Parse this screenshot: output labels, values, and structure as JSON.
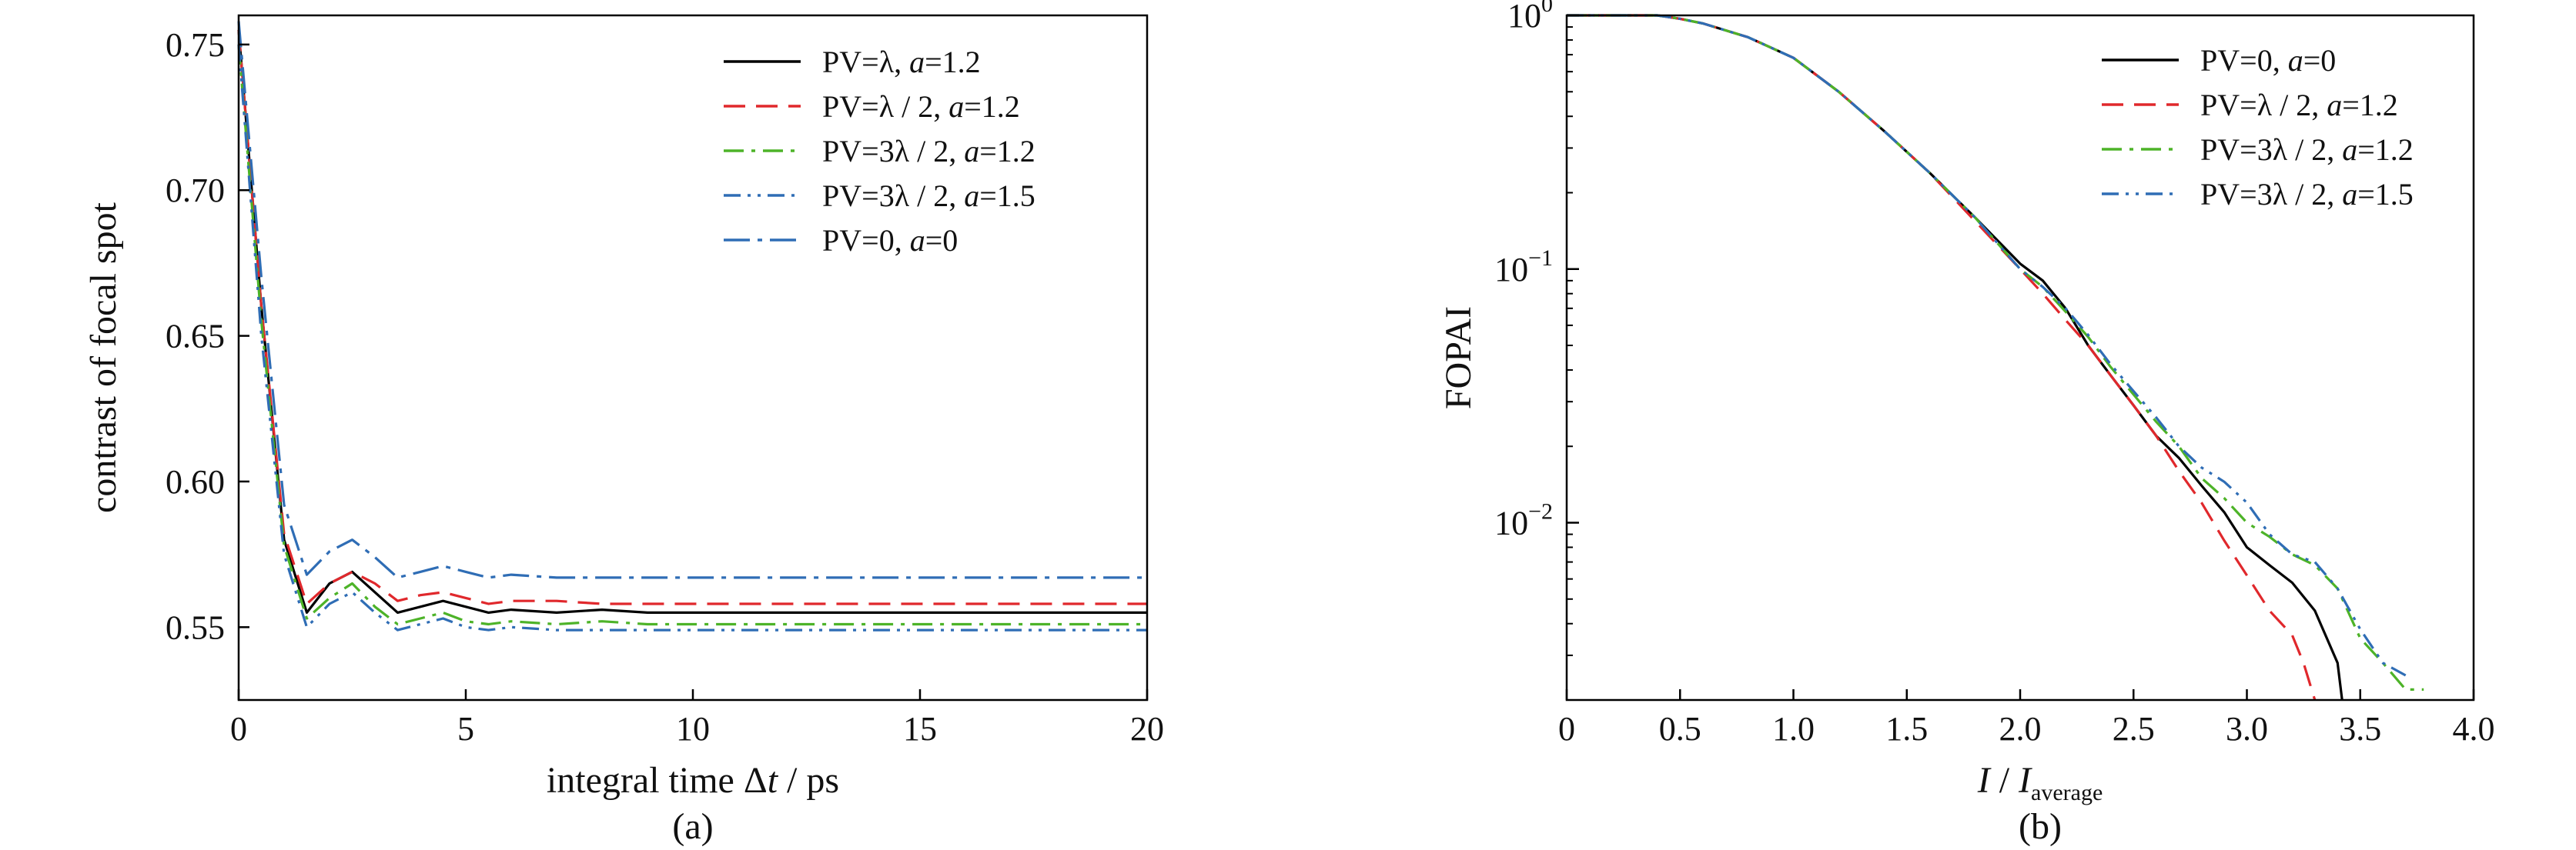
{
  "chart_data": [
    {
      "id": "a",
      "type": "line",
      "caption": "(a)",
      "xlabel_parts": [
        "integral time Δ",
        "t",
        " / ps"
      ],
      "ylabel": "contrast of focal spot",
      "xlim": [
        0,
        20
      ],
      "ylim": [
        0.525,
        0.76
      ],
      "xticks": [
        "0",
        "5",
        "10",
        "15",
        "20"
      ],
      "yticks": [
        "0.55",
        "0.60",
        "0.65",
        "0.70",
        "0.75"
      ],
      "grid": false,
      "legend_position": "top-right",
      "series": [
        {
          "name": "PV=λ, a=1.2",
          "label_parts": [
            "PV=λ, ",
            "a",
            "=1.2"
          ],
          "color": "#000000",
          "dash": "solid",
          "x": [
            0,
            0.5,
            1.0,
            1.5,
            2.0,
            2.5,
            3.0,
            3.5,
            4.0,
            4.5,
            5.0,
            5.5,
            6.0,
            7.0,
            8.0,
            9.0,
            10.0,
            12.0,
            14.0,
            16.0,
            18.0,
            20.0
          ],
          "y": [
            0.755,
            0.66,
            0.58,
            0.555,
            0.565,
            0.569,
            0.562,
            0.555,
            0.557,
            0.559,
            0.557,
            0.555,
            0.556,
            0.555,
            0.556,
            0.555,
            0.555,
            0.555,
            0.555,
            0.555,
            0.555,
            0.555
          ]
        },
        {
          "name": "PV=λ / 2, a=1.2",
          "label_parts": [
            "PV=λ / 2, ",
            "a",
            "=1.2"
          ],
          "color": "#e0282c",
          "dash": "dashed",
          "x": [
            0,
            0.5,
            1.0,
            1.5,
            2.0,
            2.5,
            3.0,
            3.5,
            4.0,
            4.5,
            5.0,
            5.5,
            6.0,
            7.0,
            8.0,
            9.0,
            10.0,
            12.0,
            14.0,
            16.0,
            18.0,
            20.0
          ],
          "y": [
            0.755,
            0.66,
            0.582,
            0.558,
            0.565,
            0.569,
            0.565,
            0.559,
            0.561,
            0.562,
            0.56,
            0.558,
            0.559,
            0.559,
            0.558,
            0.558,
            0.558,
            0.558,
            0.558,
            0.558,
            0.558,
            0.558
          ]
        },
        {
          "name": "PV=3λ / 2, a=1.2",
          "label_parts": [
            "PV=3λ / 2, ",
            "a",
            "=1.2"
          ],
          "color": "#4db328",
          "dash": "dashdot",
          "x": [
            0,
            0.5,
            1.0,
            1.5,
            2.0,
            2.5,
            3.0,
            3.5,
            4.0,
            4.5,
            5.0,
            5.5,
            6.0,
            7.0,
            8.0,
            9.0,
            10.0,
            12.0,
            14.0,
            16.0,
            18.0,
            20.0
          ],
          "y": [
            0.75,
            0.655,
            0.578,
            0.553,
            0.56,
            0.565,
            0.557,
            0.551,
            0.553,
            0.555,
            0.552,
            0.551,
            0.552,
            0.551,
            0.552,
            0.551,
            0.551,
            0.551,
            0.551,
            0.551,
            0.551,
            0.551
          ]
        },
        {
          "name": "PV=3λ / 2, a=1.5",
          "label_parts": [
            "PV=3λ / 2, ",
            "a",
            "=1.5"
          ],
          "color": "#2f6db5",
          "dash": "dashdotdot",
          "x": [
            0,
            0.5,
            1.0,
            1.5,
            2.0,
            2.5,
            3.0,
            3.5,
            4.0,
            4.5,
            5.0,
            5.5,
            6.0,
            7.0,
            8.0,
            9.0,
            10.0,
            12.0,
            14.0,
            16.0,
            18.0,
            20.0
          ],
          "y": [
            0.75,
            0.65,
            0.575,
            0.55,
            0.558,
            0.562,
            0.555,
            0.549,
            0.551,
            0.553,
            0.55,
            0.549,
            0.55,
            0.549,
            0.549,
            0.549,
            0.549,
            0.549,
            0.549,
            0.549,
            0.549,
            0.549
          ]
        },
        {
          "name": "PV=0, a=0",
          "label_parts": [
            "PV=0, ",
            "a",
            "=0"
          ],
          "color": "#2f6db5",
          "dash": "longdashdot",
          "x": [
            0,
            0.5,
            1.0,
            1.5,
            2.0,
            2.5,
            3.0,
            3.5,
            4.0,
            4.5,
            5.0,
            5.5,
            6.0,
            7.0,
            8.0,
            9.0,
            10.0,
            12.0,
            14.0,
            16.0,
            18.0,
            20.0
          ],
          "y": [
            0.758,
            0.67,
            0.592,
            0.568,
            0.576,
            0.58,
            0.574,
            0.567,
            0.569,
            0.571,
            0.569,
            0.567,
            0.568,
            0.567,
            0.567,
            0.567,
            0.567,
            0.567,
            0.567,
            0.567,
            0.567,
            0.567
          ]
        }
      ]
    },
    {
      "id": "b",
      "type": "line",
      "caption": "(b)",
      "xlabel_parts": [
        "I",
        " / ",
        "I",
        "average"
      ],
      "ylabel": "FOPAI",
      "yscale": "log",
      "xlim": [
        0,
        4.0
      ],
      "ylim": [
        0.002,
        1.0
      ],
      "xticks": [
        "0",
        "0.5",
        "1.0",
        "1.5",
        "2.0",
        "2.5",
        "3.0",
        "3.5",
        "4.0"
      ],
      "yticks": [
        {
          "base": "10",
          "exp": "0"
        },
        {
          "base": "10",
          "exp": "−1"
        },
        {
          "base": "10",
          "exp": "−2"
        }
      ],
      "grid": false,
      "legend_position": "top-right",
      "series": [
        {
          "name": "PV=0, a=0",
          "label_parts": [
            "PV=0, ",
            "a",
            "=0"
          ],
          "color": "#000000",
          "dash": "solid",
          "x": [
            0,
            0.1,
            0.2,
            0.3,
            0.4,
            0.5,
            0.6,
            0.8,
            1.0,
            1.2,
            1.4,
            1.6,
            1.8,
            2.0,
            2.1,
            2.2,
            2.3,
            2.4,
            2.5,
            2.6,
            2.7,
            2.8,
            2.9,
            3.0,
            3.1,
            3.2,
            3.3,
            3.4,
            3.42
          ],
          "y": [
            1.0,
            1.0,
            1.0,
            1.0,
            1.0,
            0.97,
            0.93,
            0.82,
            0.68,
            0.5,
            0.35,
            0.24,
            0.16,
            0.105,
            0.09,
            0.07,
            0.05,
            0.038,
            0.029,
            0.022,
            0.018,
            0.014,
            0.011,
            0.008,
            0.0068,
            0.0058,
            0.0045,
            0.0028,
            0.002
          ]
        },
        {
          "name": "PV=λ / 2, a=1.2",
          "label_parts": [
            "PV=λ / 2, ",
            "a",
            "=1.2"
          ],
          "color": "#e0282c",
          "dash": "dashed",
          "x": [
            0,
            0.1,
            0.2,
            0.3,
            0.4,
            0.5,
            0.6,
            0.8,
            1.0,
            1.2,
            1.4,
            1.6,
            1.8,
            2.0,
            2.1,
            2.2,
            2.3,
            2.4,
            2.5,
            2.6,
            2.7,
            2.8,
            2.9,
            3.0,
            3.1,
            3.2,
            3.25,
            3.3
          ],
          "y": [
            1.0,
            1.0,
            1.0,
            1.0,
            1.0,
            0.97,
            0.93,
            0.82,
            0.68,
            0.5,
            0.35,
            0.24,
            0.155,
            0.1,
            0.08,
            0.063,
            0.05,
            0.038,
            0.029,
            0.022,
            0.016,
            0.012,
            0.0085,
            0.0062,
            0.0045,
            0.0036,
            0.0028,
            0.002
          ]
        },
        {
          "name": "PV=3λ / 2, a=1.2",
          "label_parts": [
            "PV=3λ / 2, ",
            "a",
            "=1.2"
          ],
          "color": "#4db328",
          "dash": "dashdot",
          "x": [
            0,
            0.1,
            0.2,
            0.3,
            0.4,
            0.5,
            0.6,
            0.8,
            1.0,
            1.2,
            1.4,
            1.6,
            1.8,
            2.0,
            2.1,
            2.2,
            2.3,
            2.4,
            2.5,
            2.6,
            2.7,
            2.8,
            2.9,
            3.0,
            3.1,
            3.2,
            3.3,
            3.4,
            3.5,
            3.6,
            3.7,
            3.78
          ],
          "y": [
            1.0,
            1.0,
            1.0,
            1.0,
            1.0,
            0.97,
            0.93,
            0.82,
            0.68,
            0.5,
            0.35,
            0.24,
            0.16,
            0.1,
            0.085,
            0.068,
            0.054,
            0.041,
            0.032,
            0.025,
            0.02,
            0.015,
            0.0125,
            0.01,
            0.0088,
            0.0075,
            0.0068,
            0.0055,
            0.0035,
            0.0028,
            0.0022,
            0.0022
          ]
        },
        {
          "name": "PV=3λ / 2, a=1.5",
          "label_parts": [
            "PV=3λ / 2, ",
            "a",
            "=1.5"
          ],
          "color": "#2f6db5",
          "dash": "dashdotdot",
          "x": [
            0,
            0.1,
            0.2,
            0.3,
            0.4,
            0.5,
            0.6,
            0.8,
            1.0,
            1.2,
            1.4,
            1.6,
            1.8,
            2.0,
            2.1,
            2.2,
            2.3,
            2.4,
            2.5,
            2.6,
            2.7,
            2.8,
            2.9,
            3.0,
            3.1,
            3.2,
            3.3,
            3.4,
            3.5,
            3.6,
            3.7
          ],
          "y": [
            1.0,
            1.0,
            1.0,
            1.0,
            1.0,
            0.97,
            0.93,
            0.82,
            0.68,
            0.5,
            0.35,
            0.24,
            0.16,
            0.1,
            0.085,
            0.07,
            0.055,
            0.042,
            0.033,
            0.026,
            0.02,
            0.0165,
            0.0145,
            0.012,
            0.009,
            0.0075,
            0.007,
            0.0055,
            0.0038,
            0.0028,
            0.0025
          ]
        }
      ]
    }
  ]
}
